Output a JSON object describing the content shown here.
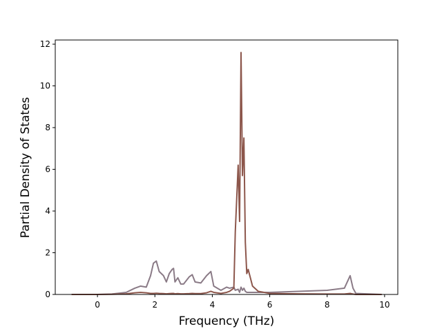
{
  "chart_data": {
    "type": "line",
    "xlabel": "Frequency (THz)",
    "ylabel": "Partial Density of States",
    "x": [
      -0.9,
      0,
      0.5,
      1.0,
      1.3,
      1.5,
      1.7,
      1.85,
      1.95,
      2.05,
      2.15,
      2.3,
      2.4,
      2.5,
      2.6,
      2.65,
      2.7,
      2.8,
      2.9,
      3.0,
      3.2,
      3.3,
      3.4,
      3.6,
      3.8,
      3.95,
      4.05,
      4.3,
      4.5,
      4.6,
      4.75,
      4.8,
      4.9,
      4.95,
      5.0,
      5.05,
      5.1,
      5.15,
      5.2,
      5.25,
      5.4,
      5.6,
      6.0,
      7.0,
      8.0,
      8.6,
      8.8,
      8.9,
      9.0,
      9.9
    ],
    "series": [
      {
        "color": "#8a7a86",
        "values": [
          0,
          0,
          0.02,
          0.1,
          0.3,
          0.4,
          0.35,
          0.9,
          1.5,
          1.6,
          1.1,
          0.9,
          0.6,
          1.0,
          1.2,
          1.25,
          0.6,
          0.8,
          0.5,
          0.5,
          0.85,
          0.95,
          0.6,
          0.55,
          0.9,
          1.1,
          0.4,
          0.2,
          0.35,
          0.3,
          0.35,
          0.2,
          0.25,
          0.1,
          0.35,
          0.2,
          0.3,
          0.15,
          0.1,
          0.1,
          0.1,
          0.1,
          0.1,
          0.15,
          0.2,
          0.3,
          0.9,
          0.3,
          0.05,
          0
        ]
      },
      {
        "color": "#8c564b",
        "values": [
          0,
          0,
          0.01,
          0.03,
          0.08,
          0.1,
          0.08,
          0.05,
          0.05,
          0.06,
          0.05,
          0.04,
          0.03,
          0.04,
          0.05,
          0.05,
          0.03,
          0.04,
          0.03,
          0.03,
          0.04,
          0.05,
          0.04,
          0.04,
          0.08,
          0.15,
          0.1,
          0.05,
          0.1,
          0.15,
          0.3,
          3.0,
          6.2,
          3.5,
          11.6,
          5.7,
          7.5,
          2.5,
          1.0,
          1.2,
          0.4,
          0.15,
          0.05,
          0.03,
          0.02,
          0.02,
          0.05,
          0.02,
          0,
          0
        ]
      }
    ],
    "xlim": [
      -1.47,
      10.46
    ],
    "xticks": [
      0,
      2,
      4,
      6,
      8,
      10
    ],
    "ylim": [
      0,
      12.2
    ],
    "yticks": [
      0,
      2,
      4,
      6,
      8,
      10,
      12
    ]
  }
}
